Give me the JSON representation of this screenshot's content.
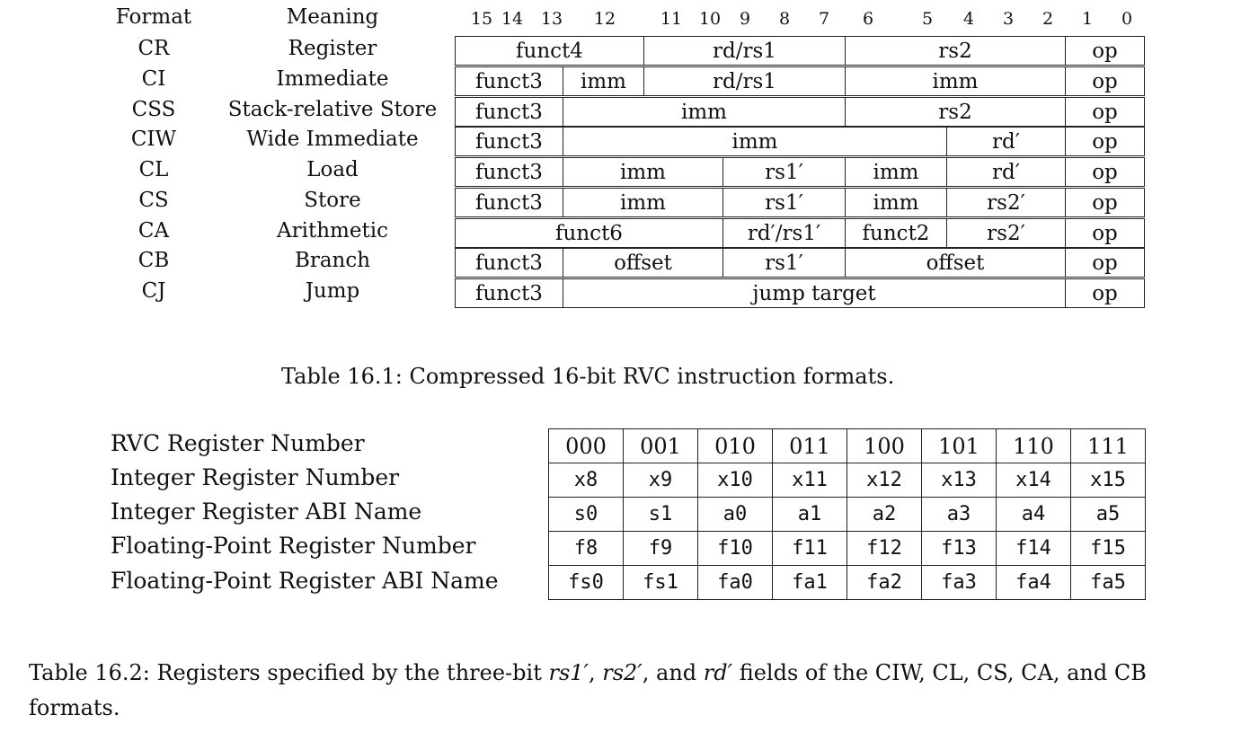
{
  "table1": {
    "header": {
      "format": "Format",
      "meaning": "Meaning"
    },
    "bit_labels": [
      "15",
      "14",
      "13",
      "12",
      "11",
      "10",
      "9",
      "8",
      "7",
      "6",
      "5",
      "4",
      "3",
      "2",
      "1",
      "0"
    ],
    "rows": [
      {
        "format": "CR",
        "meaning": "Register",
        "fields": [
          "funct4",
          "rd/rs1",
          "rs2",
          "op"
        ]
      },
      {
        "format": "CI",
        "meaning": "Immediate",
        "fields": [
          "funct3",
          "imm",
          "rd/rs1",
          "imm",
          "op"
        ]
      },
      {
        "format": "CSS",
        "meaning": "Stack-relative Store",
        "fields": [
          "funct3",
          "imm",
          "rs2",
          "op"
        ]
      },
      {
        "format": "CIW",
        "meaning": "Wide Immediate",
        "fields": [
          "funct3",
          "imm",
          "rd′",
          "op"
        ]
      },
      {
        "format": "CL",
        "meaning": "Load",
        "fields": [
          "funct3",
          "imm",
          "rs1′",
          "imm",
          "rd′",
          "op"
        ]
      },
      {
        "format": "CS",
        "meaning": "Store",
        "fields": [
          "funct3",
          "imm",
          "rs1′",
          "imm",
          "rs2′",
          "op"
        ]
      },
      {
        "format": "CA",
        "meaning": "Arithmetic",
        "fields": [
          "funct6",
          "rd′/rs1′",
          "funct2",
          "rs2′",
          "op"
        ]
      },
      {
        "format": "CB",
        "meaning": "Branch",
        "fields": [
          "funct3",
          "offset",
          "rs1′",
          "offset",
          "op"
        ]
      },
      {
        "format": "CJ",
        "meaning": "Jump",
        "fields": [
          "funct3",
          "jump target",
          "op"
        ]
      }
    ],
    "caption": "Table 16.1: Compressed 16-bit RVC instruction formats."
  },
  "table2": {
    "row_labels": [
      "RVC Register Number",
      "Integer Register Number",
      "Integer Register ABI Name",
      "Floating-Point Register Number",
      "Floating-Point Register ABI Name"
    ],
    "rows": [
      [
        "000",
        "001",
        "010",
        "011",
        "100",
        "101",
        "110",
        "111"
      ],
      [
        "x8",
        "x9",
        "x10",
        "x11",
        "x12",
        "x13",
        "x14",
        "x15"
      ],
      [
        "s0",
        "s1",
        "a0",
        "a1",
        "a2",
        "a3",
        "a4",
        "a5"
      ],
      [
        "f8",
        "f9",
        "f10",
        "f11",
        "f12",
        "f13",
        "f14",
        "f15"
      ],
      [
        "fs0",
        "fs1",
        "fa0",
        "fa1",
        "fa2",
        "fa3",
        "fa4",
        "fa5"
      ]
    ],
    "caption": {
      "prefix": "Table 16.2: Registers specified by the three-bit ",
      "f1": "rs1′",
      "sep1": ", ",
      "f2": "rs2′",
      "sep2": ", and ",
      "f3": "rd′",
      "suffix": " fields of the CIW, CL, CS, CA, and CB formats."
    }
  }
}
